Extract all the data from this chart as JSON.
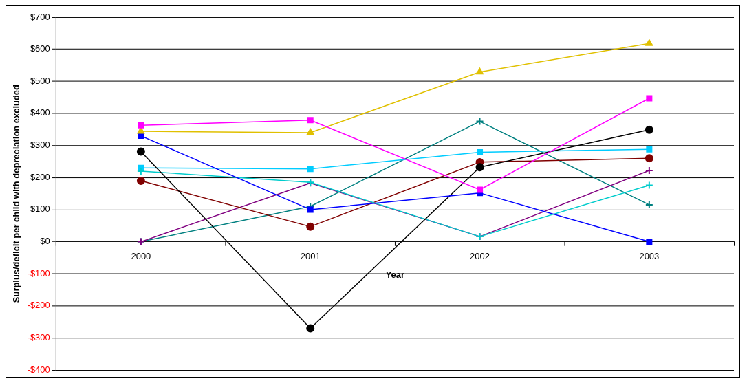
{
  "chart_data": {
    "type": "line",
    "xlabel": "Year",
    "ylabel": "Surplus/deficit per child with depreciation excluded",
    "categories": [
      "2000",
      "2001",
      "2002",
      "2003"
    ],
    "series": [
      {
        "color": "#ff00ff",
        "marker": "square",
        "values": [
          363,
          379,
          162,
          447
        ]
      },
      {
        "color": "#e0c000",
        "marker": "triangle",
        "values": [
          344,
          340,
          529,
          618
        ]
      },
      {
        "color": "#0000ff",
        "marker": "square",
        "values": [
          330,
          100,
          152,
          0
        ]
      },
      {
        "color": "#000000",
        "marker": "circle",
        "values": [
          281,
          -270,
          232,
          349
        ]
      },
      {
        "color": "#00cccc",
        "marker": "cross",
        "values": [
          220,
          185,
          16,
          176
        ]
      },
      {
        "color": "#00ccff",
        "marker": "square",
        "values": [
          230,
          227,
          279,
          288
        ]
      },
      {
        "color": "#800000",
        "marker": "circle",
        "values": [
          190,
          47,
          248,
          260
        ]
      },
      {
        "color": "#800080",
        "marker": "cross",
        "values": [
          0,
          183,
          16,
          222
        ]
      },
      {
        "color": "#008080",
        "marker": "cross",
        "values": [
          0,
          110,
          375,
          115
        ]
      }
    ],
    "ylim": [
      -400,
      700
    ],
    "yticks": [
      {
        "value": -400,
        "label": "-$400"
      },
      {
        "value": -300,
        "label": "-$300"
      },
      {
        "value": -200,
        "label": "-$200"
      },
      {
        "value": -100,
        "label": "-$100"
      },
      {
        "value": 0,
        "label": "$0"
      },
      {
        "value": 100,
        "label": "$100"
      },
      {
        "value": 200,
        "label": "$200"
      },
      {
        "value": 300,
        "label": "$300"
      },
      {
        "value": 400,
        "label": "$400"
      },
      {
        "value": 500,
        "label": "$500"
      },
      {
        "value": 600,
        "label": "$600"
      },
      {
        "value": 700,
        "label": "$700"
      }
    ],
    "grid": "y",
    "legend": false
  }
}
